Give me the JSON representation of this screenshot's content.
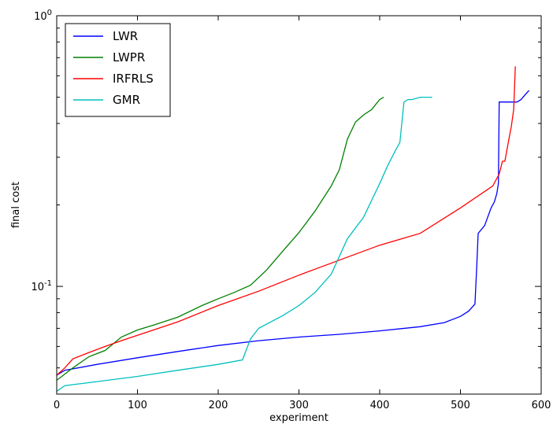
{
  "chart_data": {
    "type": "line",
    "title": "",
    "xlabel": "experiment",
    "ylabel": "final cost",
    "xlim": [
      0,
      600
    ],
    "ylim": [
      0.04,
      1.0
    ],
    "yscale": "log",
    "grid": false,
    "legend_position": "top-left",
    "x_ticks": [
      0,
      100,
      200,
      300,
      400,
      500,
      600
    ],
    "x_tick_labels": [
      "0",
      "100",
      "200",
      "300",
      "400",
      "500",
      "600"
    ],
    "y_major_ticks": [
      {
        "value": 0.1,
        "base": "10",
        "exponent": "-1"
      },
      {
        "value": 1.0,
        "base": "10",
        "exponent": "0"
      }
    ],
    "y_minor_ticks": [
      0.05,
      0.06,
      0.07,
      0.08,
      0.09,
      0.2,
      0.3,
      0.4,
      0.5,
      0.6,
      0.7,
      0.8,
      0.9
    ],
    "series": [
      {
        "name": "LWR",
        "color": "#0000ff",
        "x": [
          0,
          10,
          50,
          100,
          150,
          200,
          250,
          300,
          350,
          400,
          450,
          480,
          500,
          510,
          518,
          520,
          522,
          530,
          538,
          542,
          545,
          547,
          548,
          555,
          560,
          570,
          575,
          580,
          585
        ],
        "y": [
          0.047,
          0.049,
          0.0515,
          0.0545,
          0.0575,
          0.0605,
          0.063,
          0.065,
          0.0665,
          0.0685,
          0.071,
          0.0735,
          0.0775,
          0.081,
          0.086,
          0.115,
          0.157,
          0.168,
          0.195,
          0.205,
          0.22,
          0.24,
          0.48,
          0.48,
          0.48,
          0.48,
          0.49,
          0.51,
          0.53
        ]
      },
      {
        "name": "LWPR",
        "color": "#008000",
        "x": [
          0,
          20,
          40,
          60,
          80,
          100,
          120,
          150,
          180,
          200,
          220,
          240,
          260,
          280,
          300,
          320,
          340,
          350,
          360,
          370,
          380,
          390,
          395,
          400,
          405
        ],
        "y": [
          0.045,
          0.05,
          0.055,
          0.058,
          0.065,
          0.069,
          0.072,
          0.077,
          0.085,
          0.09,
          0.095,
          0.101,
          0.115,
          0.135,
          0.158,
          0.19,
          0.235,
          0.27,
          0.35,
          0.405,
          0.43,
          0.45,
          0.47,
          0.49,
          0.5
        ]
      },
      {
        "name": "IRFRLS",
        "color": "#ff0000",
        "x": [
          0,
          10,
          20,
          40,
          60,
          80,
          100,
          150,
          200,
          250,
          300,
          350,
          400,
          450,
          500,
          540,
          548,
          552,
          555,
          560,
          563,
          566,
          568
        ],
        "y": [
          0.047,
          0.05,
          0.054,
          0.057,
          0.06,
          0.063,
          0.066,
          0.074,
          0.085,
          0.096,
          0.11,
          0.125,
          0.142,
          0.157,
          0.195,
          0.235,
          0.26,
          0.29,
          0.29,
          0.35,
          0.39,
          0.45,
          0.65
        ]
      },
      {
        "name": "GMR",
        "color": "#00bfbf",
        "x": [
          0,
          10,
          50,
          100,
          150,
          200,
          230,
          240,
          250,
          280,
          300,
          320,
          340,
          360,
          380,
          400,
          410,
          420,
          425,
          430,
          435,
          440,
          450,
          465
        ],
        "y": [
          0.041,
          0.043,
          0.0445,
          0.0465,
          0.049,
          0.0515,
          0.0535,
          0.064,
          0.07,
          0.078,
          0.085,
          0.095,
          0.111,
          0.15,
          0.18,
          0.24,
          0.28,
          0.32,
          0.34,
          0.48,
          0.49,
          0.49,
          0.5,
          0.5
        ]
      }
    ]
  }
}
